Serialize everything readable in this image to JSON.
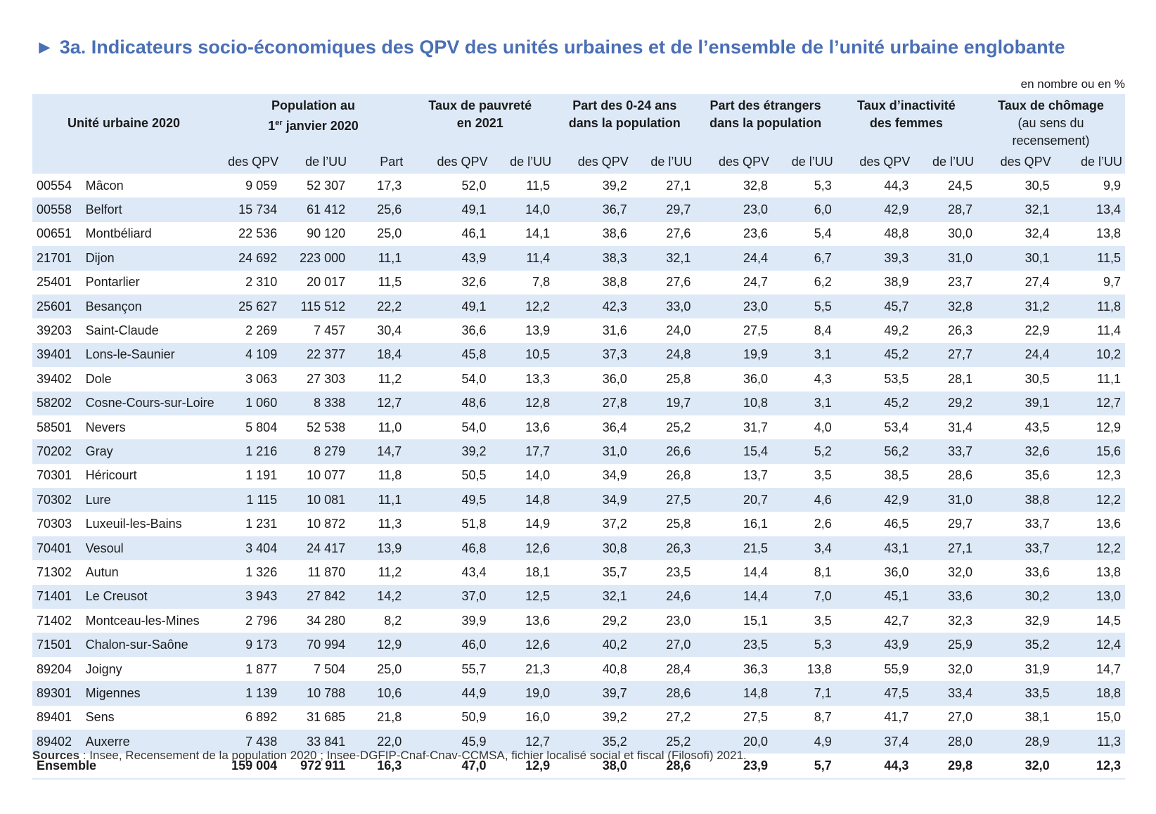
{
  "title": "3a. Indicateurs socio-économiques des QPV des unités urbaines et de l’ensemble de l’unité urbaine englobante",
  "unit_note": "en nombre ou en %",
  "header": {
    "unit_col": "Unité urbaine 2020",
    "population_line1": "Population au",
    "population_line2_pre": "1",
    "population_line2_sup": "er",
    "population_line2_post": " janvier 2020",
    "poverty_line1": "Taux de pauvreté",
    "poverty_line2": "en 2021",
    "young_line1": "Part des 0-24 ans",
    "young_line2": "dans la population",
    "foreign_line1": "Part des étrangers",
    "foreign_line2": "dans la population",
    "inactivity_line1": "Taux d’inactivité",
    "inactivity_line2": "des femmes",
    "unemployment_line1": "Taux de chômage",
    "unemployment_line2": "(au sens du",
    "unemployment_line3": "recensement)",
    "sub_qpv": "des QPV",
    "sub_uu": "de l’UU",
    "sub_part": "Part"
  },
  "rows": [
    [
      "00554",
      "Mâcon",
      "9 059",
      "52 307",
      "17,3",
      "52,0",
      "11,5",
      "39,2",
      "27,1",
      "32,8",
      "5,3",
      "44,3",
      "24,5",
      "30,5",
      "9,9"
    ],
    [
      "00558",
      "Belfort",
      "15 734",
      "61 412",
      "25,6",
      "49,1",
      "14,0",
      "36,7",
      "29,7",
      "23,0",
      "6,0",
      "42,9",
      "28,7",
      "32,1",
      "13,4"
    ],
    [
      "00651",
      "Montbéliard",
      "22 536",
      "90 120",
      "25,0",
      "46,1",
      "14,1",
      "38,6",
      "27,6",
      "23,6",
      "5,4",
      "48,8",
      "30,0",
      "32,4",
      "13,8"
    ],
    [
      "21701",
      "Dijon",
      "24 692",
      "223 000",
      "11,1",
      "43,9",
      "11,4",
      "38,3",
      "32,1",
      "24,4",
      "6,7",
      "39,3",
      "31,0",
      "30,1",
      "11,5"
    ],
    [
      "25401",
      "Pontarlier",
      "2 310",
      "20 017",
      "11,5",
      "32,6",
      "7,8",
      "38,8",
      "27,6",
      "24,7",
      "6,2",
      "38,9",
      "23,7",
      "27,4",
      "9,7"
    ],
    [
      "25601",
      "Besançon",
      "25 627",
      "115 512",
      "22,2",
      "49,1",
      "12,2",
      "42,3",
      "33,0",
      "23,0",
      "5,5",
      "45,7",
      "32,8",
      "31,2",
      "11,8"
    ],
    [
      "39203",
      "Saint-Claude",
      "2 269",
      "7 457",
      "30,4",
      "36,6",
      "13,9",
      "31,6",
      "24,0",
      "27,5",
      "8,4",
      "49,2",
      "26,3",
      "22,9",
      "11,4"
    ],
    [
      "39401",
      "Lons-le-Saunier",
      "4 109",
      "22 377",
      "18,4",
      "45,8",
      "10,5",
      "37,3",
      "24,8",
      "19,9",
      "3,1",
      "45,2",
      "27,7",
      "24,4",
      "10,2"
    ],
    [
      "39402",
      "Dole",
      "3 063",
      "27 303",
      "11,2",
      "54,0",
      "13,3",
      "36,0",
      "25,8",
      "36,0",
      "4,3",
      "53,5",
      "28,1",
      "30,5",
      "11,1"
    ],
    [
      "58202",
      "Cosne-Cours-sur-Loire",
      "1 060",
      "8 338",
      "12,7",
      "48,6",
      "12,8",
      "27,8",
      "19,7",
      "10,8",
      "3,1",
      "45,2",
      "29,2",
      "39,1",
      "12,7"
    ],
    [
      "58501",
      "Nevers",
      "5 804",
      "52 538",
      "11,0",
      "54,0",
      "13,6",
      "36,4",
      "25,2",
      "31,7",
      "4,0",
      "53,4",
      "31,4",
      "43,5",
      "12,9"
    ],
    [
      "70202",
      "Gray",
      "1 216",
      "8 279",
      "14,7",
      "39,2",
      "17,7",
      "31,0",
      "26,6",
      "15,4",
      "5,2",
      "56,2",
      "33,7",
      "32,6",
      "15,6"
    ],
    [
      "70301",
      "Héricourt",
      "1 191",
      "10 077",
      "11,8",
      "50,5",
      "14,0",
      "34,9",
      "26,8",
      "13,7",
      "3,5",
      "38,5",
      "28,6",
      "35,6",
      "12,3"
    ],
    [
      "70302",
      "Lure",
      "1 115",
      "10 081",
      "11,1",
      "49,5",
      "14,8",
      "34,9",
      "27,5",
      "20,7",
      "4,6",
      "42,9",
      "31,0",
      "38,8",
      "12,2"
    ],
    [
      "70303",
      "Luxeuil-les-Bains",
      "1 231",
      "10 872",
      "11,3",
      "51,8",
      "14,9",
      "37,2",
      "25,8",
      "16,1",
      "2,6",
      "46,5",
      "29,7",
      "33,7",
      "13,6"
    ],
    [
      "70401",
      "Vesoul",
      "3 404",
      "24 417",
      "13,9",
      "46,8",
      "12,6",
      "30,8",
      "26,3",
      "21,5",
      "3,4",
      "43,1",
      "27,1",
      "33,7",
      "12,2"
    ],
    [
      "71302",
      "Autun",
      "1 326",
      "11 870",
      "11,2",
      "43,4",
      "18,1",
      "35,7",
      "23,5",
      "14,4",
      "8,1",
      "36,0",
      "32,0",
      "33,6",
      "13,8"
    ],
    [
      "71401",
      "Le Creusot",
      "3 943",
      "27 842",
      "14,2",
      "37,0",
      "12,5",
      "32,1",
      "24,6",
      "14,4",
      "7,0",
      "45,1",
      "33,6",
      "30,2",
      "13,0"
    ],
    [
      "71402",
      "Montceau-les-Mines",
      "2 796",
      "34 280",
      "8,2",
      "39,9",
      "13,6",
      "29,2",
      "23,0",
      "15,1",
      "3,5",
      "42,7",
      "32,3",
      "32,9",
      "14,5"
    ],
    [
      "71501",
      "Chalon-sur-Saône",
      "9 173",
      "70 994",
      "12,9",
      "46,0",
      "12,6",
      "40,2",
      "27,0",
      "23,5",
      "5,3",
      "43,9",
      "25,9",
      "35,2",
      "12,4"
    ],
    [
      "89204",
      "Joigny",
      "1 877",
      "7 504",
      "25,0",
      "55,7",
      "21,3",
      "40,8",
      "28,4",
      "36,3",
      "13,8",
      "55,9",
      "32,0",
      "31,9",
      "14,7"
    ],
    [
      "89301",
      "Migennes",
      "1 139",
      "10 788",
      "10,6",
      "44,9",
      "19,0",
      "39,7",
      "28,6",
      "14,8",
      "7,1",
      "47,5",
      "33,4",
      "33,5",
      "18,8"
    ],
    [
      "89401",
      "Sens",
      "6 892",
      "31 685",
      "21,8",
      "50,9",
      "16,0",
      "39,2",
      "27,2",
      "27,5",
      "8,7",
      "41,7",
      "27,0",
      "38,1",
      "15,0"
    ],
    [
      "89402",
      "Auxerre",
      "7 438",
      "33 841",
      "22,0",
      "45,9",
      "12,7",
      "35,2",
      "25,2",
      "20,0",
      "4,9",
      "37,4",
      "28,0",
      "28,9",
      "11,3"
    ]
  ],
  "total": [
    "Ensemble",
    "159 004",
    "972 911",
    "16,3",
    "47,0",
    "12,9",
    "38,0",
    "28,6",
    "23,9",
    "5,7",
    "44,3",
    "29,8",
    "32,0",
    "12,3"
  ],
  "sources_label": "Sources",
  "sources_text": " : Insee, Recensement de la population 2020 ; Insee-DGFIP-Cnaf-Cnav-CCMSA, fichier localisé social et fiscal (Filosofi) 2021."
}
